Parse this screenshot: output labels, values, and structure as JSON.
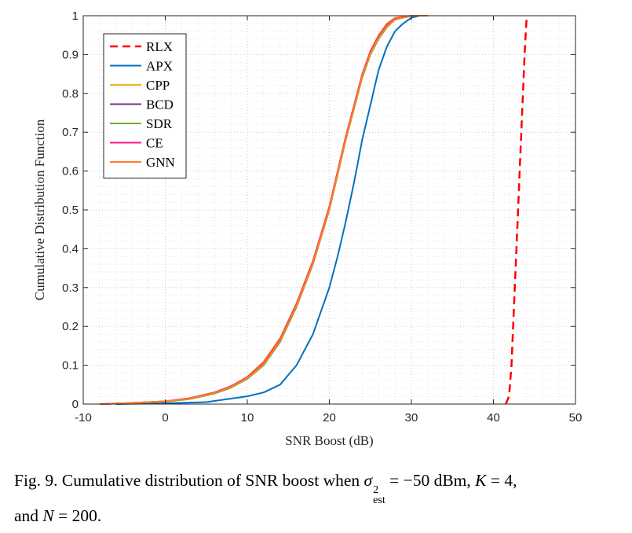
{
  "chart_data": {
    "type": "line",
    "title": "",
    "xlabel": "SNR Boost (dB)",
    "ylabel": "Cumulative Distribution Function",
    "xlim": [
      -10,
      50
    ],
    "ylim": [
      0,
      1
    ],
    "xticks": [
      -10,
      0,
      10,
      20,
      30,
      40,
      50
    ],
    "yticks": [
      0,
      0.1,
      0.2,
      0.3,
      0.4,
      0.5,
      0.6,
      0.7,
      0.8,
      0.9,
      1
    ],
    "grid": "on (dotted, major and minor)",
    "legend_position": "top-left",
    "series": [
      {
        "name": "RLX",
        "color": "#ff0000",
        "dash": "dashed",
        "x": [
          41.5,
          41.9,
          42.2,
          42.4,
          42.6,
          42.8,
          43.0,
          43.2,
          43.4,
          43.6,
          43.8,
          44.0,
          44.1
        ],
        "y": [
          0,
          0.02,
          0.1,
          0.2,
          0.3,
          0.4,
          0.5,
          0.6,
          0.7,
          0.8,
          0.9,
          0.98,
          1.0
        ]
      },
      {
        "name": "APX",
        "color": "#0072bd",
        "dash": "solid",
        "x": [
          -6,
          0,
          5,
          10,
          12,
          14,
          16,
          18,
          20,
          21,
          22,
          23,
          24,
          25,
          26,
          27,
          28,
          29,
          30,
          31
        ],
        "y": [
          0,
          0.002,
          0.005,
          0.02,
          0.03,
          0.05,
          0.1,
          0.18,
          0.3,
          0.38,
          0.47,
          0.57,
          0.68,
          0.77,
          0.86,
          0.92,
          0.96,
          0.98,
          0.995,
          1.0
        ]
      },
      {
        "name": "CPP",
        "color": "#edb120",
        "dash": "solid",
        "x": [
          -8,
          -5,
          0,
          3,
          6,
          8,
          10,
          12,
          14,
          16,
          18,
          19,
          20,
          21,
          22,
          23,
          24,
          25,
          26,
          27,
          28,
          30,
          32
        ],
        "y": [
          0,
          0.002,
          0.007,
          0.015,
          0.03,
          0.045,
          0.07,
          0.11,
          0.17,
          0.26,
          0.37,
          0.44,
          0.51,
          0.6,
          0.69,
          0.77,
          0.85,
          0.91,
          0.95,
          0.98,
          0.995,
          1.0,
          1.0
        ]
      },
      {
        "name": "BCD",
        "color": "#7e2f8e",
        "dash": "solid",
        "x": [
          -8,
          -5,
          0,
          3,
          6,
          8,
          10,
          12,
          14,
          16,
          18,
          19,
          20,
          21,
          22,
          23,
          24,
          25,
          26,
          27,
          28,
          30,
          32
        ],
        "y": [
          0,
          0.002,
          0.007,
          0.015,
          0.03,
          0.045,
          0.068,
          0.105,
          0.165,
          0.255,
          0.365,
          0.435,
          0.505,
          0.595,
          0.685,
          0.765,
          0.845,
          0.905,
          0.945,
          0.975,
          0.99,
          1.0,
          1.0
        ]
      },
      {
        "name": "SDR",
        "color": "#77ac30",
        "dash": "solid",
        "x": [
          -8,
          -5,
          0,
          3,
          6,
          8,
          10,
          12,
          14,
          16,
          18,
          19,
          20,
          21,
          22,
          23,
          24,
          25,
          26,
          27,
          28,
          30,
          32
        ],
        "y": [
          0,
          0.002,
          0.006,
          0.013,
          0.027,
          0.042,
          0.065,
          0.1,
          0.16,
          0.25,
          0.36,
          0.43,
          0.5,
          0.59,
          0.68,
          0.76,
          0.84,
          0.9,
          0.94,
          0.97,
          0.99,
          1.0,
          1.0
        ]
      },
      {
        "name": "CE",
        "color": "#ff1493",
        "dash": "solid",
        "x": [
          -8,
          -5,
          0,
          3,
          6,
          8,
          10,
          12,
          14,
          16,
          18,
          19,
          20,
          21,
          22,
          23,
          24,
          25,
          26,
          27,
          28,
          30,
          32
        ],
        "y": [
          0,
          0.002,
          0.007,
          0.015,
          0.03,
          0.046,
          0.069,
          0.106,
          0.167,
          0.257,
          0.367,
          0.437,
          0.507,
          0.597,
          0.687,
          0.767,
          0.847,
          0.907,
          0.947,
          0.977,
          0.992,
          1.0,
          1.0
        ]
      },
      {
        "name": "GNN",
        "color": "#ff7f2a",
        "dash": "solid",
        "x": [
          -8,
          -5,
          0,
          3,
          6,
          8,
          10,
          12,
          14,
          16,
          18,
          19,
          20,
          21,
          22,
          23,
          24,
          25,
          26,
          27,
          28,
          30,
          32
        ],
        "y": [
          0,
          0.002,
          0.007,
          0.014,
          0.029,
          0.044,
          0.067,
          0.103,
          0.163,
          0.253,
          0.363,
          0.433,
          0.503,
          0.593,
          0.683,
          0.763,
          0.843,
          0.903,
          0.943,
          0.973,
          0.99,
          1.0,
          1.0
        ]
      }
    ]
  },
  "caption": {
    "prefix": "Fig. 9.  Cumulative distribution of SNR boost when ",
    "sigma": "σ",
    "sigma_sup": "2",
    "sigma_sub": "est",
    "middle": " = −50 dBm, ",
    "k_var": "K",
    "k_value": " = 4,",
    "line2_prefix": "and ",
    "n_var": "N",
    "n_value": " = 200."
  }
}
